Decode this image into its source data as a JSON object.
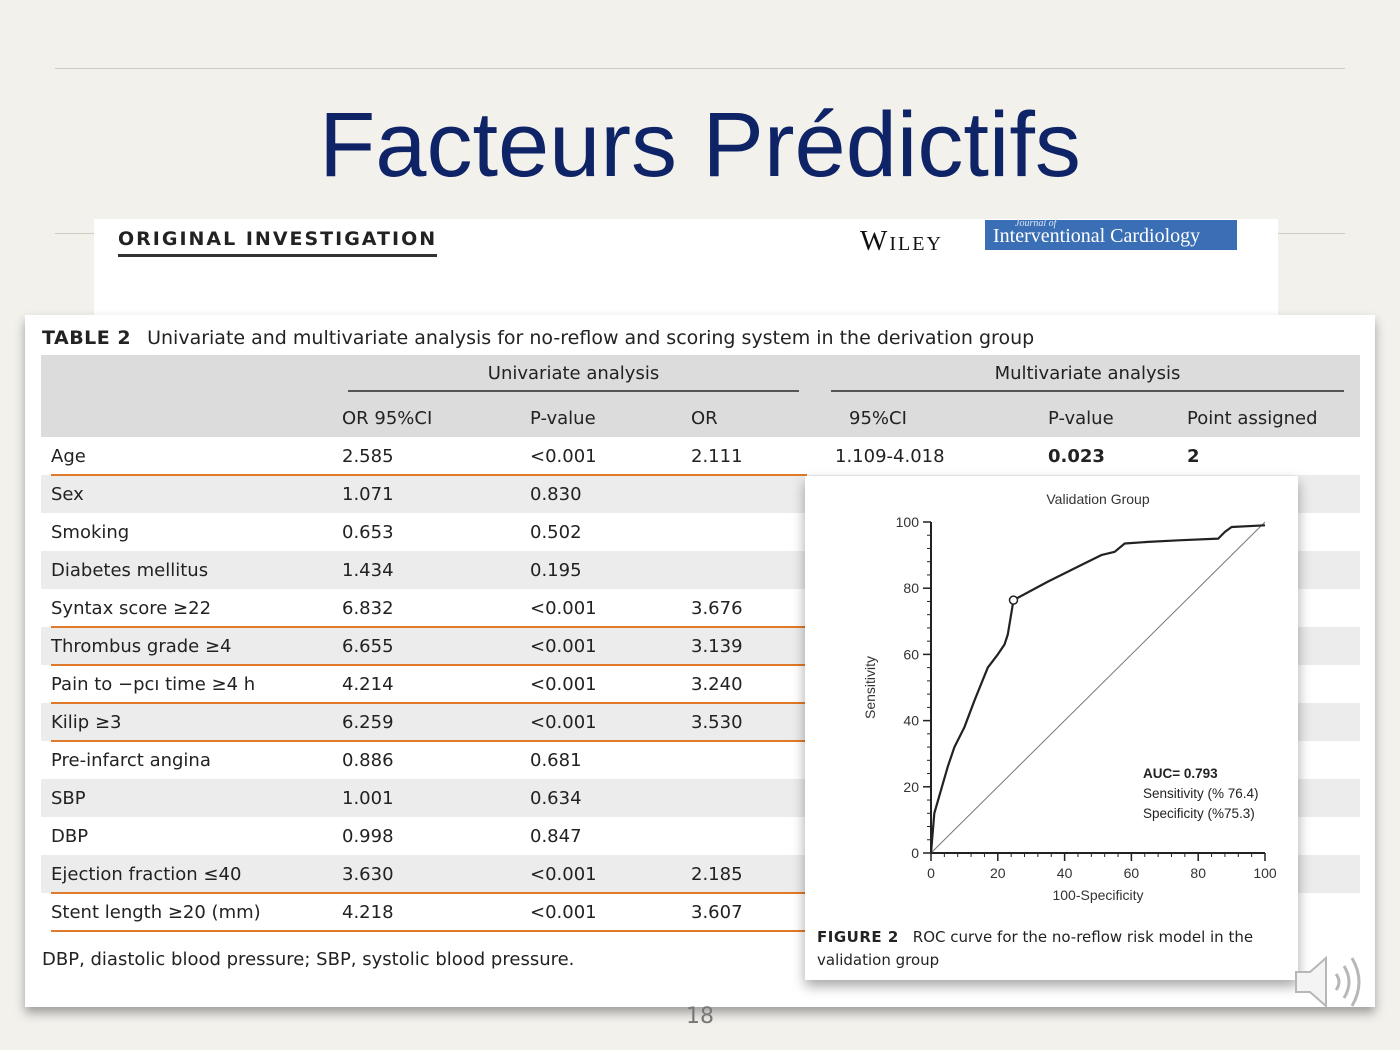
{
  "slide": {
    "title": "Facteurs Prédictifs",
    "page_number": "18"
  },
  "header": {
    "section": "ORIGINAL INVESTIGATION",
    "publisher": "Wiley",
    "journal_small": "Journal of",
    "journal_name": "Interventional Cardiology"
  },
  "table": {
    "label": "TABLE 2",
    "caption": "Univariate and multivariate analysis for no-reflow and scoring system in the derivation group",
    "group_headers": {
      "univariate": "Univariate analysis",
      "multivariate": "Multivariate analysis"
    },
    "columns": [
      "OR 95%CI",
      "P-value",
      "OR",
      "95%CI",
      "P-value",
      "Point assigned"
    ],
    "rows": [
      {
        "name": "Age",
        "or_ci": "2.585",
        "p": "<0.001",
        "or": "2.111",
        "ci": "1.109-4.018",
        "p2": "0.023",
        "pt": "2"
      },
      {
        "name": "Sex",
        "or_ci": "1.071",
        "p": "0.830",
        "or": "",
        "ci": "",
        "p2": "",
        "pt": ""
      },
      {
        "name": "Smoking",
        "or_ci": "0.653",
        "p": "0.502",
        "or": "",
        "ci": "",
        "p2": "",
        "pt": ""
      },
      {
        "name": "Diabetes mellitus",
        "or_ci": "1.434",
        "p": "0.195",
        "or": "",
        "ci": "",
        "p2": "",
        "pt": ""
      },
      {
        "name": "Syntax score ≥22",
        "or_ci": "6.832",
        "p": "<0.001",
        "or": "3.676",
        "ci": "",
        "p2": "",
        "pt": ""
      },
      {
        "name": "Thrombus grade ≥4",
        "or_ci": "6.655",
        "p": "<0.001",
        "or": "3.139",
        "ci": "",
        "p2": "",
        "pt": ""
      },
      {
        "name": "Pain to −pcı time ≥4 h",
        "or_ci": "4.214",
        "p": "<0.001",
        "or": "3.240",
        "ci": "",
        "p2": "",
        "pt": ""
      },
      {
        "name": "Kilip ≥3",
        "or_ci": "6.259",
        "p": "<0.001",
        "or": "3.530",
        "ci": "",
        "p2": "",
        "pt": ""
      },
      {
        "name": "Pre-infarct angina",
        "or_ci": "0.886",
        "p": "0.681",
        "or": "",
        "ci": "",
        "p2": "",
        "pt": ""
      },
      {
        "name": "SBP",
        "or_ci": "1.001",
        "p": "0.634",
        "or": "",
        "ci": "",
        "p2": "",
        "pt": ""
      },
      {
        "name": "DBP",
        "or_ci": "0.998",
        "p": "0.847",
        "or": "",
        "ci": "",
        "p2": "",
        "pt": ""
      },
      {
        "name": "Ejection fraction ≤40",
        "or_ci": "3.630",
        "p": "<0.001",
        "or": "2.185",
        "ci": "",
        "p2": "",
        "pt": ""
      },
      {
        "name": "Stent length ≥20 (mm)",
        "or_ci": "4.218",
        "p": "<0.001",
        "or": "3.607",
        "ci": "",
        "p2": "",
        "pt": ""
      }
    ],
    "footnote": "DBP, diastolic blood pressure; SBP, systolic blood pressure."
  },
  "figure": {
    "label": "FIGURE 2",
    "caption": "ROC curve for the no-reflow risk model in the validation group"
  },
  "chart_data": {
    "type": "line",
    "title": "Validation Group",
    "xlabel": "100-Specificity",
    "ylabel": "Sensitivity",
    "xlim": [
      0,
      100
    ],
    "ylim": [
      0,
      100
    ],
    "xticks": [
      0,
      20,
      40,
      60,
      80,
      100
    ],
    "yticks": [
      0,
      20,
      40,
      60,
      80,
      100
    ],
    "series": [
      {
        "values": [
          [
            0,
            0
          ],
          [
            1,
            12
          ],
          [
            3,
            19
          ],
          [
            5,
            26
          ],
          [
            7,
            32
          ],
          [
            10,
            38
          ],
          [
            13,
            46
          ],
          [
            17,
            56
          ],
          [
            20,
            60
          ],
          [
            22,
            63
          ],
          [
            23,
            66
          ],
          [
            24.7,
            76.4
          ],
          [
            35,
            82
          ],
          [
            45,
            87
          ],
          [
            51,
            90
          ],
          [
            55,
            91
          ],
          [
            58,
            93.5
          ],
          [
            65,
            94
          ],
          [
            75,
            94.5
          ],
          [
            86,
            95
          ],
          [
            88,
            97
          ],
          [
            90,
            98.5
          ],
          [
            100,
            99
          ]
        ]
      },
      {
        "values": [
          [
            0,
            0
          ],
          [
            100,
            100
          ]
        ]
      }
    ],
    "marker": {
      "x": 24.7,
      "y": 76.4
    },
    "annotation": {
      "auc": "AUC= 0.793",
      "sensitivity": "Sensitivity (% 76.4)",
      "specificity": "Specificity (%75.3)"
    }
  }
}
